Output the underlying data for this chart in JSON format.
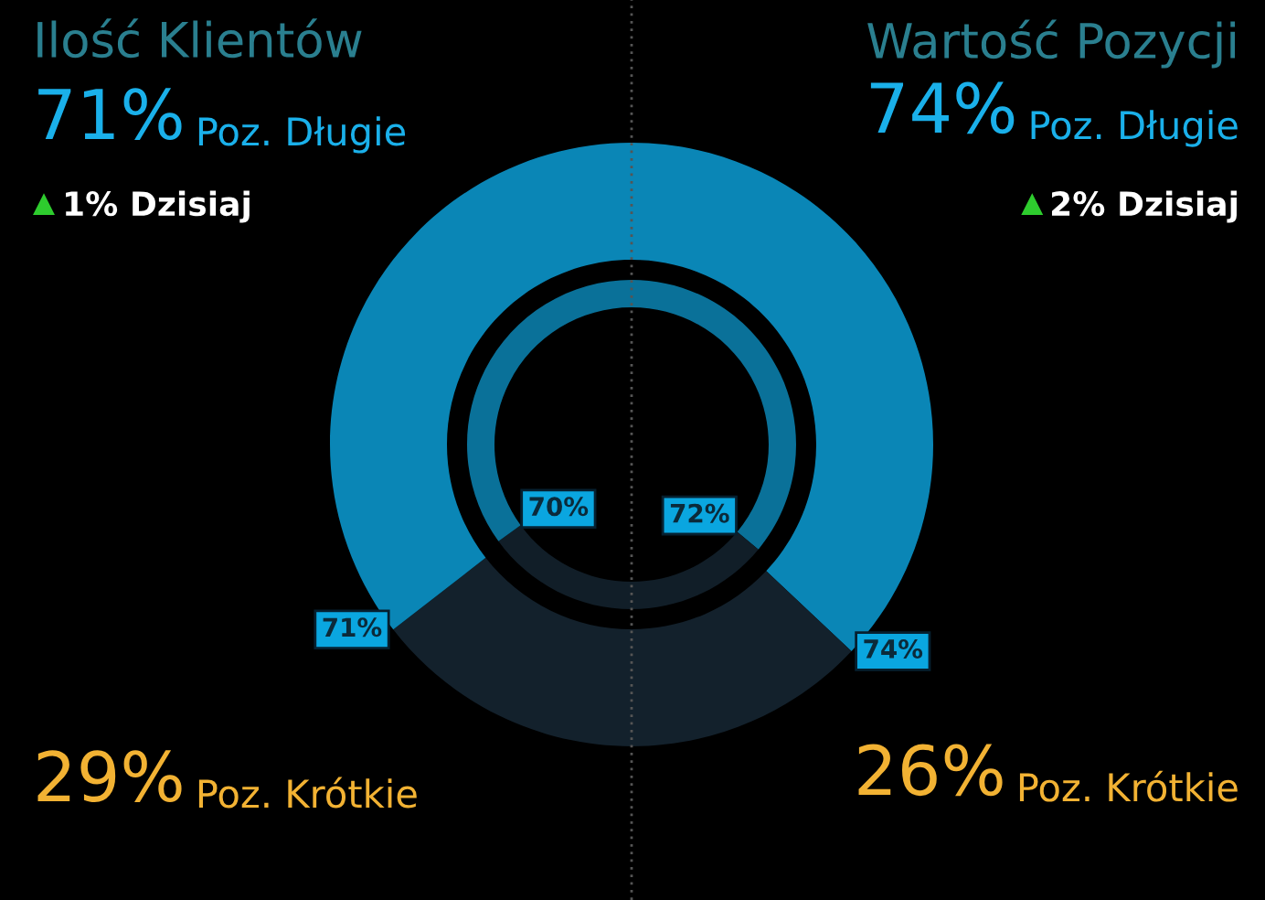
{
  "chart_data": {
    "type": "donut",
    "title": "Ilość Klientów",
    "series": [
      {
        "values": [
          74,
          26,
          29,
          71
        ],
        "colors": [
          "#0a86b6",
          "#13212c",
          "#13212c",
          "#0a86b6"
        ],
        "value_labels": [
          "74%",
          null,
          null,
          "71%"
        ]
      },
      {
        "values": [
          72,
          28,
          30,
          70
        ],
        "colors": [
          "#0a7199",
          "#111e28",
          "#111e28",
          "#0a7199"
        ],
        "value_labels": [
          "72%",
          null,
          null,
          "70%"
        ]
      }
    ],
    "annotations": [
      "Wartość Pozycji",
      "71%",
      "Poz. Długie",
      "1% Dzisiaj",
      "29%",
      "Poz. Krótkie",
      "74%",
      "Poz. Długie",
      "2% Dzisiaj",
      "26%",
      "Poz. Krótkie"
    ]
  }
}
